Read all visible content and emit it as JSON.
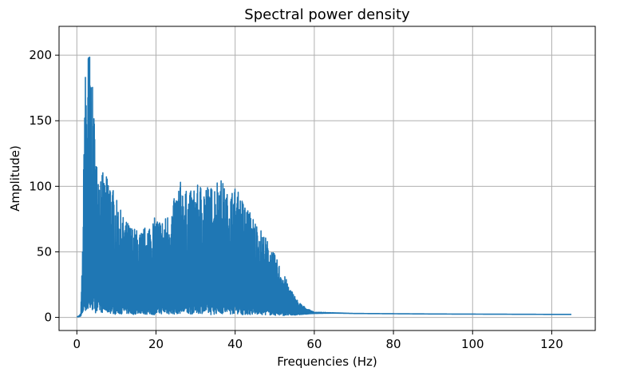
{
  "chart_data": {
    "type": "line",
    "title": "Spectral power density",
    "xlabel": "Frequencies (Hz)",
    "ylabel": "Amplitude)",
    "xlim": [
      -4.5,
      131
    ],
    "ylim": [
      -10,
      222
    ],
    "xticks": [
      0,
      20,
      40,
      60,
      80,
      100,
      120
    ],
    "yticks": [
      0,
      50,
      100,
      150,
      200
    ],
    "grid": true,
    "line_color": "#1f77b4",
    "series": [
      {
        "x": [
          0,
          0.5,
          1.0,
          1.5,
          2.0,
          2.5,
          3.0,
          3.5,
          4.0,
          4.5,
          5.0,
          6.0,
          7.0,
          8.0,
          9.0,
          10,
          12,
          14,
          16,
          18,
          20,
          22,
          24,
          26,
          28,
          30,
          32,
          34,
          36,
          38,
          40,
          42,
          44,
          46,
          48,
          50,
          52,
          54,
          56,
          58,
          60,
          65,
          70,
          80,
          90,
          100,
          110,
          120,
          125
        ],
        "upper": [
          0.5,
          1,
          3,
          60,
          192,
          185,
          211,
          195,
          174,
          150,
          120,
          118,
          105,
          111,
          100,
          90,
          75,
          70,
          65,
          72,
          77,
          75,
          85,
          105,
          95,
          100,
          104,
          100,
          110,
          95,
          100,
          90,
          80,
          70,
          60,
          48,
          35,
          22,
          12,
          7,
          4,
          3.5,
          3,
          2.8,
          2.6,
          2.5,
          2.4,
          2.3,
          2.3
        ],
        "lower": [
          0.5,
          0.5,
          1,
          3,
          5,
          4,
          3,
          4,
          5,
          4,
          3,
          4,
          3,
          3,
          3,
          2,
          3,
          2,
          3,
          2,
          2,
          3,
          2,
          3,
          2,
          3,
          3,
          2,
          3,
          2,
          3,
          2,
          2,
          2,
          2,
          1.5,
          1.5,
          1.5,
          2,
          2.5,
          3,
          3.3,
          3,
          2.8,
          2.6,
          2.5,
          2.4,
          2.3,
          2.3
        ]
      }
    ]
  }
}
